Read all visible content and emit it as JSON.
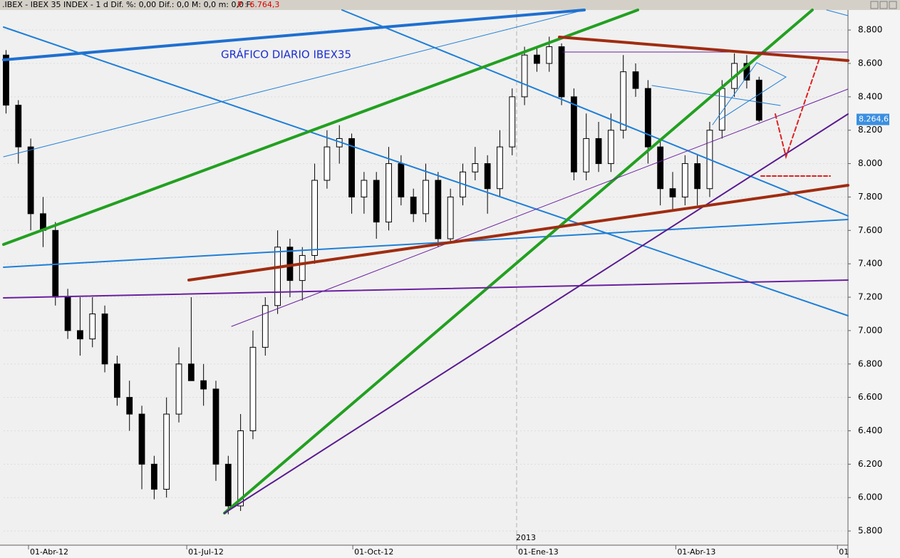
{
  "toolbar": {
    "title": ".IBEX - IBEX 35 INDEX - 1 d Dif. %: 0,00 Dif.: 0,0 M: 0,0 m: 0,0 F:",
    "price": "P : 6.764,3"
  },
  "chart_data": {
    "type": "candlestick",
    "title": "GRÁFICO DIARIO IBEX35",
    "year_marker": "2013",
    "x": [
      0,
      1,
      2,
      3,
      4,
      5,
      6,
      7,
      8,
      9,
      10,
      11,
      12,
      13,
      14,
      15,
      16,
      17,
      18,
      19,
      20,
      21,
      22,
      23,
      24,
      25,
      26,
      27,
      28,
      29,
      30,
      31,
      32,
      33,
      34,
      35,
      36,
      37,
      38,
      39,
      40,
      41,
      42,
      43,
      44,
      45,
      46,
      47,
      48,
      49,
      50,
      51,
      52,
      53,
      54,
      55,
      56,
      57,
      58,
      59,
      60,
      61
    ],
    "open": [
      8650,
      8350,
      8100,
      7700,
      7600,
      7200,
      7000,
      6950,
      7100,
      6800,
      6600,
      6500,
      6200,
      6050,
      6500,
      6800,
      6700,
      6650,
      6200,
      5950,
      6400,
      6900,
      7150,
      7500,
      7300,
      7450,
      7900,
      8100,
      8150,
      7800,
      7900,
      7650,
      8000,
      7800,
      7700,
      7900,
      7550,
      7800,
      7950,
      8000,
      7850,
      8100,
      8400,
      8650,
      8600,
      8700,
      8400,
      7950,
      8150,
      8000,
      8200,
      8550,
      8450,
      8100,
      7850,
      7800,
      8000,
      7850,
      8200,
      8450,
      8600,
      8500
    ],
    "high": [
      8680,
      8380,
      8150,
      7800,
      7650,
      7250,
      7200,
      7200,
      7150,
      6850,
      6700,
      6550,
      6250,
      6600,
      6900,
      7200,
      6800,
      6700,
      6250,
      6500,
      7000,
      7200,
      7600,
      7550,
      7500,
      8000,
      8200,
      8230,
      8180,
      7950,
      7950,
      8100,
      8050,
      7850,
      8000,
      7950,
      7850,
      8000,
      8100,
      8050,
      8200,
      8450,
      8700,
      8700,
      8760,
      8720,
      8450,
      8300,
      8250,
      8300,
      8650,
      8600,
      8500,
      8150,
      7950,
      8050,
      8050,
      8250,
      8500,
      8660,
      8650,
      8520
    ],
    "low": [
      8300,
      8000,
      7600,
      7500,
      7150,
      6950,
      6850,
      6900,
      6750,
      6550,
      6400,
      6050,
      5990,
      6000,
      6450,
      6700,
      6550,
      6100,
      5900,
      5920,
      6350,
      6850,
      7100,
      7200,
      7180,
      7400,
      7850,
      8000,
      7700,
      7700,
      7550,
      7600,
      7750,
      7650,
      7650,
      7500,
      7520,
      7750,
      7900,
      7700,
      7800,
      8050,
      8350,
      8550,
      8550,
      8350,
      7900,
      7900,
      7950,
      7950,
      8150,
      8400,
      8000,
      7750,
      7720,
      7750,
      7750,
      7800,
      8150,
      8400,
      8450,
      8250
    ],
    "close": [
      8350,
      8100,
      7700,
      7600,
      7200,
      7000,
      6950,
      7100,
      6800,
      6600,
      6500,
      6200,
      6050,
      6500,
      6800,
      6700,
      6650,
      6200,
      5950,
      6400,
      6900,
      7150,
      7500,
      7300,
      7450,
      7900,
      8100,
      8150,
      7800,
      7900,
      7650,
      8000,
      7800,
      7700,
      7900,
      7550,
      7800,
      7950,
      8000,
      7850,
      8100,
      8400,
      8650,
      8600,
      8700,
      8400,
      7950,
      8150,
      8000,
      8200,
      8550,
      8450,
      8100,
      7850,
      7800,
      8000,
      7850,
      8200,
      8450,
      8600,
      8500,
      8260
    ],
    "xlim": [
      -0.2,
      68.2
    ],
    "xticks": [
      {
        "value": 1.82,
        "label": "01-Abr-12"
      },
      {
        "value": 14.64,
        "label": "01-Jul-12"
      },
      {
        "value": 28.09,
        "label": "01-Oct-12"
      },
      {
        "value": 41.37,
        "label": "01-Ene-13"
      },
      {
        "value": 54.25,
        "label": "01-Abr-13"
      },
      {
        "value": 67.35,
        "label": "01"
      }
    ],
    "ylim": [
      5715,
      8920
    ],
    "yticks": [
      {
        "value": 5800,
        "label": "5.800"
      },
      {
        "value": 6000,
        "label": "6.000"
      },
      {
        "value": 6200,
        "label": "6.200"
      },
      {
        "value": 6400,
        "label": "6.400"
      },
      {
        "value": 6600,
        "label": "6.600"
      },
      {
        "value": 6800,
        "label": "6.800"
      },
      {
        "value": 7000,
        "label": "7.000"
      },
      {
        "value": 7200,
        "label": "7.200"
      },
      {
        "value": 7400,
        "label": "7.400"
      },
      {
        "value": 7600,
        "label": "7.600"
      },
      {
        "value": 7800,
        "label": "7.800"
      },
      {
        "value": 8000,
        "label": "8.000"
      },
      {
        "value": 8200,
        "label": "8.200"
      },
      {
        "value": 8400,
        "label": "8.400"
      },
      {
        "value": 8600,
        "label": "8.600"
      },
      {
        "value": 8800,
        "label": "8.800"
      }
    ],
    "last_price": {
      "value": 8264.6,
      "label": "8.264,6"
    },
    "up_color": "#ffffff",
    "down_color": "#000000",
    "grid": true
  }
}
